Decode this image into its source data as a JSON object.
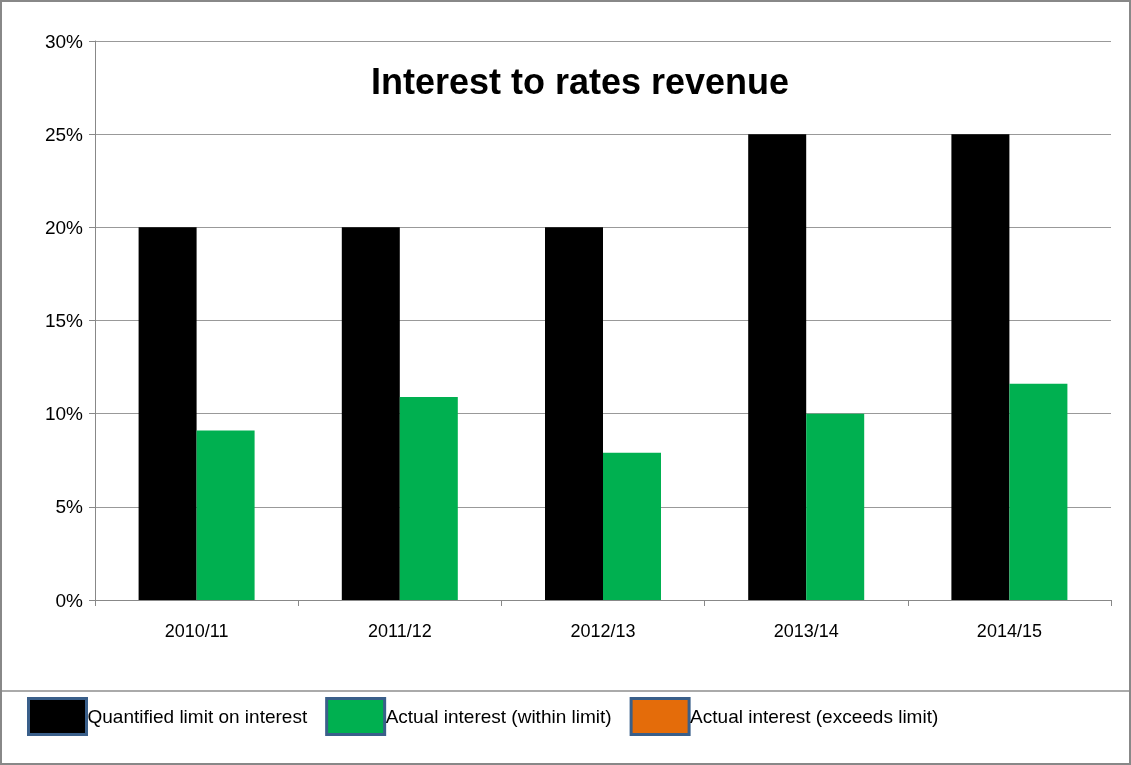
{
  "chart_data": {
    "type": "bar",
    "title": "Interest to rates revenue",
    "categories": [
      "2010/11",
      "2011/12",
      "2012/13",
      "2013/14",
      "2014/15"
    ],
    "series": [
      {
        "name": "Quantified limit on interest",
        "color": "#000000",
        "values": [
          20,
          20,
          20,
          25,
          25
        ]
      },
      {
        "name": "Actual interest (within limit)",
        "color": "#00b050",
        "values": [
          9.1,
          10.9,
          7.9,
          10.0,
          11.6
        ]
      },
      {
        "name": "Actual interest (exceeds limit)",
        "color": "#e46c0a",
        "values": [
          null,
          null,
          null,
          null,
          null
        ]
      }
    ],
    "ylim": [
      0,
      30
    ],
    "yticks": [
      {
        "value": 0,
        "label": "0%"
      },
      {
        "value": 5,
        "label": "5%"
      },
      {
        "value": 10,
        "label": "10%"
      },
      {
        "value": 15,
        "label": "15%"
      },
      {
        "value": 20,
        "label": "20%"
      },
      {
        "value": 25,
        "label": "25%"
      },
      {
        "value": 30,
        "label": "30%"
      }
    ],
    "grid": "y",
    "legend": "bottom"
  }
}
